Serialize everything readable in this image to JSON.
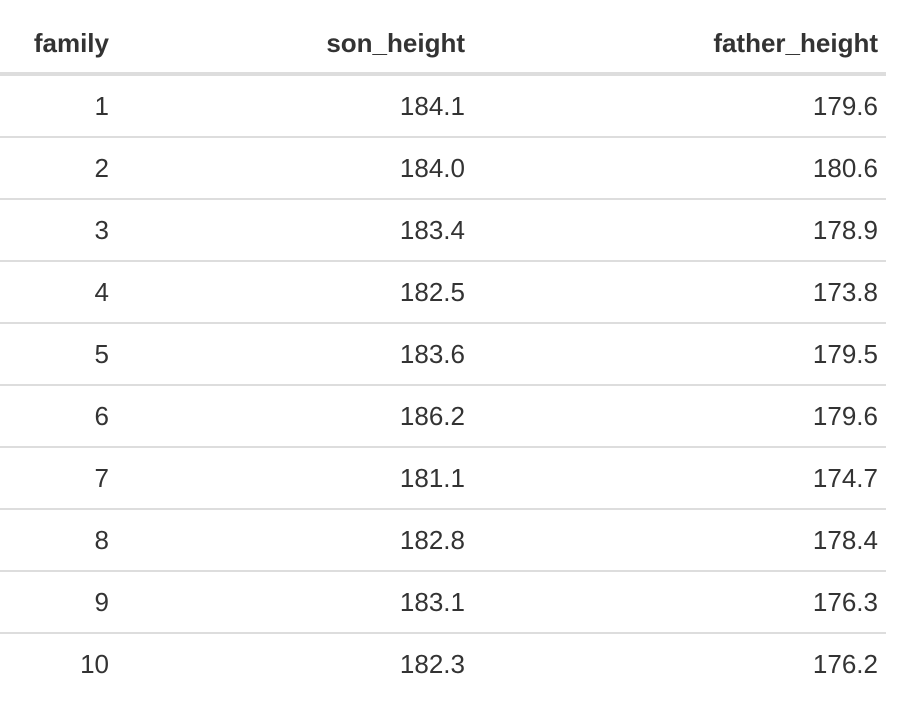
{
  "table": {
    "headers": {
      "family": "family",
      "son_height": "son_height",
      "father_height": "father_height"
    },
    "rows": [
      {
        "family": "1",
        "son_height": "184.1",
        "father_height": "179.6"
      },
      {
        "family": "2",
        "son_height": "184.0",
        "father_height": "180.6"
      },
      {
        "family": "3",
        "son_height": "183.4",
        "father_height": "178.9"
      },
      {
        "family": "4",
        "son_height": "182.5",
        "father_height": "173.8"
      },
      {
        "family": "5",
        "son_height": "183.6",
        "father_height": "179.5"
      },
      {
        "family": "6",
        "son_height": "186.2",
        "father_height": "179.6"
      },
      {
        "family": "7",
        "son_height": "181.1",
        "father_height": "174.7"
      },
      {
        "family": "8",
        "son_height": "182.8",
        "father_height": "178.4"
      },
      {
        "family": "9",
        "son_height": "183.1",
        "father_height": "176.3"
      },
      {
        "family": "10",
        "son_height": "182.3",
        "father_height": "176.2"
      }
    ]
  }
}
